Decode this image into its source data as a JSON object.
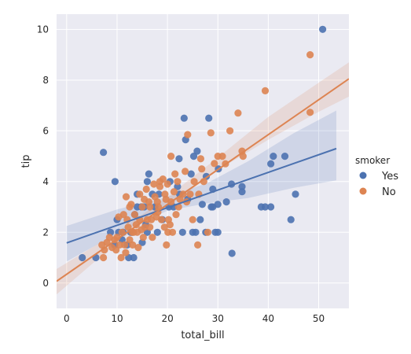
{
  "chart_data": {
    "type": "scatter",
    "xlabel": "total_bill",
    "ylabel": "tip",
    "xlim": [
      -2,
      56
    ],
    "ylim": [
      -1,
      10.6
    ],
    "xticks": [
      0,
      10,
      20,
      30,
      40,
      50
    ],
    "yticks": [
      0,
      2,
      4,
      6,
      8,
      10
    ],
    "grid": true,
    "legend_placement": "right",
    "legend_title": "smoker",
    "background": "#eaeaf2",
    "series": [
      {
        "name": "Yes",
        "color": "#4c72b0",
        "regression": {
          "x": [
            0.0,
            53.5
          ],
          "y": [
            1.58,
            5.3
          ]
        },
        "ci_upper": [
          [
            0,
            2.25
          ],
          [
            10,
            2.9
          ],
          [
            20,
            3.4
          ],
          [
            28,
            3.95
          ],
          [
            36,
            4.8
          ],
          [
            45,
            5.9
          ],
          [
            53.5,
            6.8
          ]
        ],
        "ci_lower": [
          [
            0,
            0.85
          ],
          [
            10,
            1.95
          ],
          [
            20,
            2.85
          ],
          [
            28,
            3.15
          ],
          [
            36,
            3.35
          ],
          [
            45,
            3.75
          ],
          [
            53.5,
            4.05
          ]
        ],
        "points": [
          [
            50.8,
            10.0
          ],
          [
            3.1,
            1.0
          ],
          [
            9.6,
            4.0
          ],
          [
            7.3,
            5.15
          ],
          [
            5.8,
            1.0
          ],
          [
            13.3,
            1.0
          ],
          [
            16.3,
            4.3
          ],
          [
            23.3,
            6.5
          ],
          [
            28.2,
            6.5
          ],
          [
            23.6,
            5.65
          ],
          [
            25.9,
            5.2
          ],
          [
            25.2,
            5.0
          ],
          [
            24.7,
            4.3
          ],
          [
            22.3,
            4.9
          ],
          [
            27.7,
            4.2
          ],
          [
            30.1,
            4.5
          ],
          [
            29.0,
            3.7
          ],
          [
            32.7,
            3.9
          ],
          [
            34.8,
            3.8
          ],
          [
            34.8,
            3.6
          ],
          [
            38.6,
            3.0
          ],
          [
            39.4,
            3.0
          ],
          [
            40.5,
            3.0
          ],
          [
            40.5,
            4.7
          ],
          [
            41.0,
            5.0
          ],
          [
            43.3,
            5.0
          ],
          [
            45.4,
            3.5
          ],
          [
            44.5,
            2.5
          ],
          [
            32.8,
            1.17
          ],
          [
            30.0,
            3.1
          ],
          [
            31.7,
            3.2
          ],
          [
            26.9,
            3.1
          ],
          [
            28.7,
            3.0
          ],
          [
            29.0,
            3.0
          ],
          [
            27.6,
            2.0
          ],
          [
            25.6,
            2.0
          ],
          [
            25.0,
            2.0
          ],
          [
            23.0,
            2.0
          ],
          [
            22.4,
            3.5
          ],
          [
            21.2,
            3.0
          ],
          [
            20.3,
            3.0
          ],
          [
            19.0,
            2.5
          ],
          [
            18.3,
            3.5
          ],
          [
            17.5,
            3.0
          ],
          [
            16.0,
            2.0
          ],
          [
            15.4,
            3.0
          ],
          [
            14.8,
            3.0
          ],
          [
            14.0,
            3.0
          ],
          [
            13.0,
            2.0
          ],
          [
            12.7,
            2.0
          ],
          [
            12.0,
            1.5
          ],
          [
            11.2,
            2.0
          ],
          [
            10.3,
            2.0
          ],
          [
            9.5,
            1.5
          ],
          [
            8.7,
            2.0
          ],
          [
            12.3,
            1.0
          ],
          [
            14.0,
            3.5
          ],
          [
            16.0,
            4.0
          ],
          [
            20.5,
            4.0
          ],
          [
            22.0,
            3.8
          ],
          [
            24.0,
            3.3
          ],
          [
            26.5,
            2.5
          ],
          [
            29.5,
            2.0
          ],
          [
            30.0,
            2.0
          ],
          [
            17.0,
            3.5
          ],
          [
            18.0,
            2.0
          ],
          [
            15.0,
            1.6
          ],
          [
            11.0,
            1.7
          ],
          [
            10.0,
            2.5
          ],
          [
            13.5,
            2.7
          ],
          [
            15.7,
            2.3
          ]
        ]
      },
      {
        "name": "No",
        "color": "#dd8452",
        "regression": {
          "x": [
            -2.0,
            56.0
          ],
          "y": [
            0.07,
            8.05
          ]
        },
        "ci_upper": [
          [
            -2,
            0.55
          ],
          [
            10,
            2.0
          ],
          [
            20,
            3.4
          ],
          [
            30,
            4.95
          ],
          [
            40,
            6.55
          ],
          [
            50,
            7.9
          ],
          [
            56,
            8.7
          ]
        ],
        "ci_lower": [
          [
            -2,
            -0.45
          ],
          [
            10,
            1.6
          ],
          [
            20,
            3.0
          ],
          [
            30,
            4.45
          ],
          [
            40,
            5.65
          ],
          [
            50,
            6.75
          ],
          [
            56,
            7.35
          ]
        ],
        "points": [
          [
            48.3,
            9.0
          ],
          [
            39.4,
            7.58
          ],
          [
            48.3,
            6.73
          ],
          [
            32.4,
            6.0
          ],
          [
            34.8,
            5.2
          ],
          [
            28.6,
            5.92
          ],
          [
            24.0,
            5.85
          ],
          [
            30.9,
            5.0
          ],
          [
            29.3,
            4.71
          ],
          [
            26.6,
            4.9
          ],
          [
            23.5,
            4.4
          ],
          [
            22.0,
            4.0
          ],
          [
            20.7,
            5.0
          ],
          [
            21.5,
            4.3
          ],
          [
            20.0,
            3.9
          ],
          [
            19.5,
            3.5
          ],
          [
            18.5,
            4.0
          ],
          [
            18.0,
            3.2
          ],
          [
            17.5,
            3.4
          ],
          [
            16.5,
            3.0
          ],
          [
            16.0,
            2.5
          ],
          [
            15.4,
            3.3
          ],
          [
            15.0,
            3.0
          ],
          [
            14.5,
            2.5
          ],
          [
            14.0,
            2.0
          ],
          [
            13.5,
            2.7
          ],
          [
            13.0,
            2.0
          ],
          [
            12.5,
            1.7
          ],
          [
            12.0,
            2.5
          ],
          [
            11.5,
            1.5
          ],
          [
            11.0,
            2.0
          ],
          [
            10.5,
            1.5
          ],
          [
            10.0,
            1.8
          ],
          [
            9.5,
            1.7
          ],
          [
            9.0,
            1.4
          ],
          [
            8.5,
            1.8
          ],
          [
            8.0,
            1.6
          ],
          [
            7.5,
            1.3
          ],
          [
            7.0,
            1.5
          ],
          [
            7.3,
            1.0
          ],
          [
            9.8,
            1.3
          ],
          [
            10.3,
            2.6
          ],
          [
            11.8,
            3.4
          ],
          [
            12.5,
            3.0
          ],
          [
            13.3,
            2.0
          ],
          [
            14.5,
            3.5
          ],
          [
            15.5,
            2.2
          ],
          [
            16.5,
            2.2
          ],
          [
            17.0,
            1.8
          ],
          [
            17.8,
            2.6
          ],
          [
            18.2,
            3.0
          ],
          [
            18.8,
            2.5
          ],
          [
            19.4,
            2.2
          ],
          [
            20.1,
            2.0
          ],
          [
            20.7,
            3.2
          ],
          [
            21.0,
            2.0
          ],
          [
            21.7,
            2.7
          ],
          [
            22.5,
            3.3
          ],
          [
            23.1,
            3.5
          ],
          [
            24.5,
            3.5
          ],
          [
            25.3,
            4.0
          ],
          [
            26.2,
            3.5
          ],
          [
            26.0,
            1.5
          ],
          [
            27.2,
            4.0
          ],
          [
            28.0,
            2.0
          ],
          [
            30.0,
            5.0
          ],
          [
            31.5,
            4.7
          ],
          [
            34.0,
            6.7
          ],
          [
            35.0,
            5.0
          ],
          [
            20.2,
            2.5
          ],
          [
            19.8,
            1.5
          ],
          [
            18.5,
            3.8
          ],
          [
            16.3,
            3.2
          ],
          [
            15.8,
            3.7
          ],
          [
            14.8,
            2.1
          ],
          [
            13.8,
            2.3
          ],
          [
            12.8,
            3.1
          ],
          [
            11.3,
            2.7
          ],
          [
            17.3,
            3.9
          ],
          [
            22.2,
            3.0
          ],
          [
            23.8,
            3.2
          ],
          [
            25.0,
            2.5
          ],
          [
            21.3,
            3.6
          ],
          [
            19.1,
            4.1
          ],
          [
            20.5,
            2.3
          ],
          [
            16.8,
            2.5
          ],
          [
            15.2,
            1.8
          ],
          [
            14.2,
            1.4
          ],
          [
            13.1,
            1.5
          ],
          [
            12.2,
            2.2
          ],
          [
            11.7,
            1.2
          ],
          [
            10.8,
            1.0
          ],
          [
            19.7,
            3.3
          ],
          [
            18.1,
            2.8
          ],
          [
            26.8,
            4.5
          ]
        ]
      }
    ]
  }
}
